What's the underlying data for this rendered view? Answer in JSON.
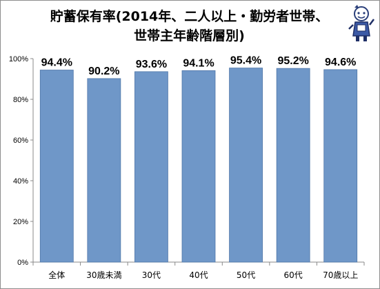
{
  "chart_data": {
    "type": "bar",
    "title": "貯蓄保有率(2014年、二人以上・勤労者世帯、世帯主年齢階層別)",
    "title_lines": [
      "貯蓄保有率(2014年、二人以上・勤労者世帯、",
      "世帯主年齢階層別)"
    ],
    "categories": [
      "全体",
      "30歳未満",
      "30代",
      "40代",
      "50代",
      "60代",
      "70歳以上"
    ],
    "values": [
      94.4,
      90.2,
      93.6,
      94.1,
      95.4,
      95.2,
      94.6
    ],
    "data_labels": [
      "94.4%",
      "90.2%",
      "93.6%",
      "94.1%",
      "95.4%",
      "95.2%",
      "94.6%"
    ],
    "yticks": [
      0,
      20,
      40,
      60,
      80,
      100
    ],
    "ytick_labels": [
      "0%",
      "20%",
      "40%",
      "60%",
      "80%",
      "100%"
    ],
    "ylim": [
      0,
      100
    ],
    "xlabel": "",
    "ylabel": "",
    "grid": false,
    "legend": "none",
    "bar_color": "#6f97c8",
    "bar_edge_color": "#4f76a8"
  }
}
